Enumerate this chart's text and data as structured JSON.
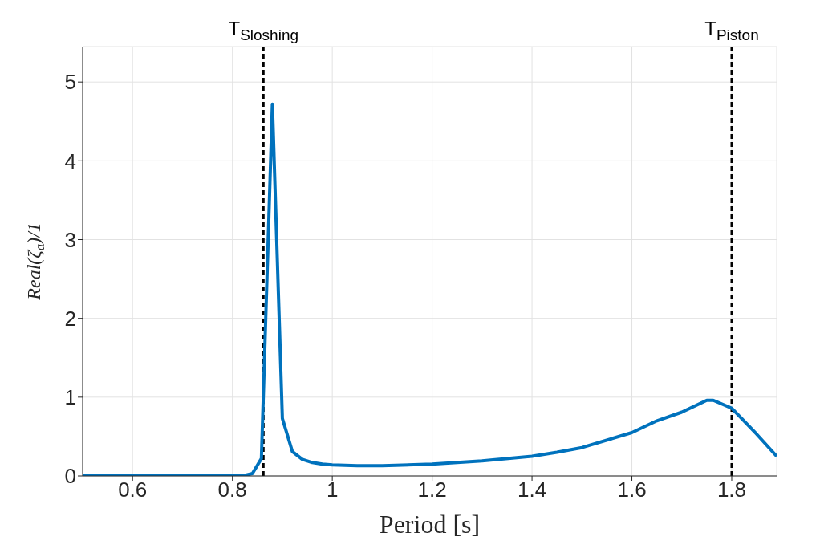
{
  "chart_data": {
    "type": "line",
    "xlabel": "Period [s]",
    "ylabel": "Real(ζ$_{a}$)/1",
    "x": [
      0.5,
      0.6,
      0.7,
      0.8,
      0.82,
      0.84,
      0.858,
      0.88,
      0.9,
      0.92,
      0.94,
      0.96,
      0.98,
      1.0,
      1.05,
      1.1,
      1.2,
      1.3,
      1.4,
      1.45,
      1.5,
      1.6,
      1.65,
      1.7,
      1.75,
      1.763,
      1.8,
      1.85,
      1.89
    ],
    "series": [
      {
        "color": "#0072bd",
        "values": [
          0.01,
          0.01,
          0.01,
          0.0,
          0.0,
          0.03,
          0.22,
          4.72,
          0.73,
          0.31,
          0.21,
          0.17,
          0.15,
          0.14,
          0.13,
          0.13,
          0.15,
          0.19,
          0.25,
          0.3,
          0.36,
          0.55,
          0.7,
          0.81,
          0.96,
          0.96,
          0.86,
          0.53,
          0.25
        ]
      }
    ],
    "xlim": [
      0.5,
      1.89
    ],
    "xticks": [
      0.6,
      0.8,
      1,
      1.2,
      1.4,
      1.6,
      1.8
    ],
    "ylim": [
      0,
      5.45
    ],
    "yticks": [
      0,
      1,
      2,
      3,
      4,
      5
    ],
    "ref_lines": [
      {
        "axis": "x",
        "value": 0.862,
        "label": "T$_{Sloshing}$",
        "color": "#000000",
        "line_style": "dashed"
      },
      {
        "axis": "x",
        "value": 1.8,
        "label": "T$_{Piston}$",
        "color": "#000000",
        "line_style": "dashed"
      }
    ],
    "grid": true,
    "legend": false,
    "marker": "none",
    "line_style": "solid"
  }
}
